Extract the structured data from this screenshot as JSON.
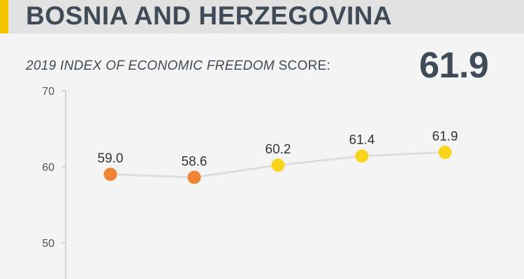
{
  "header": {
    "country": "BOSNIA AND HERZEGOVINA"
  },
  "score": {
    "label_italic": "2019 INDEX OF ECONOMIC FREEDOM",
    "label_suffix": " SCORE:",
    "value": "61.9"
  },
  "colors": {
    "accent": "#f5c400",
    "orange_marker": "#ef8532",
    "yellow_marker": "#f7d51d",
    "line": "#dddddd"
  },
  "chart_data": {
    "type": "line",
    "y_ticks": [
      70,
      60,
      50
    ],
    "ylim": [
      43,
      71.5
    ],
    "grid": false,
    "series": [
      {
        "values": [
          59.0,
          58.6,
          60.2,
          61.4,
          61.9
        ],
        "labels": [
          "59.0",
          "58.6",
          "60.2",
          "61.4",
          "61.9"
        ],
        "marker_colors": [
          "#ef8532",
          "#ef8532",
          "#f7d51d",
          "#f7d51d",
          "#f7d51d"
        ]
      }
    ]
  }
}
